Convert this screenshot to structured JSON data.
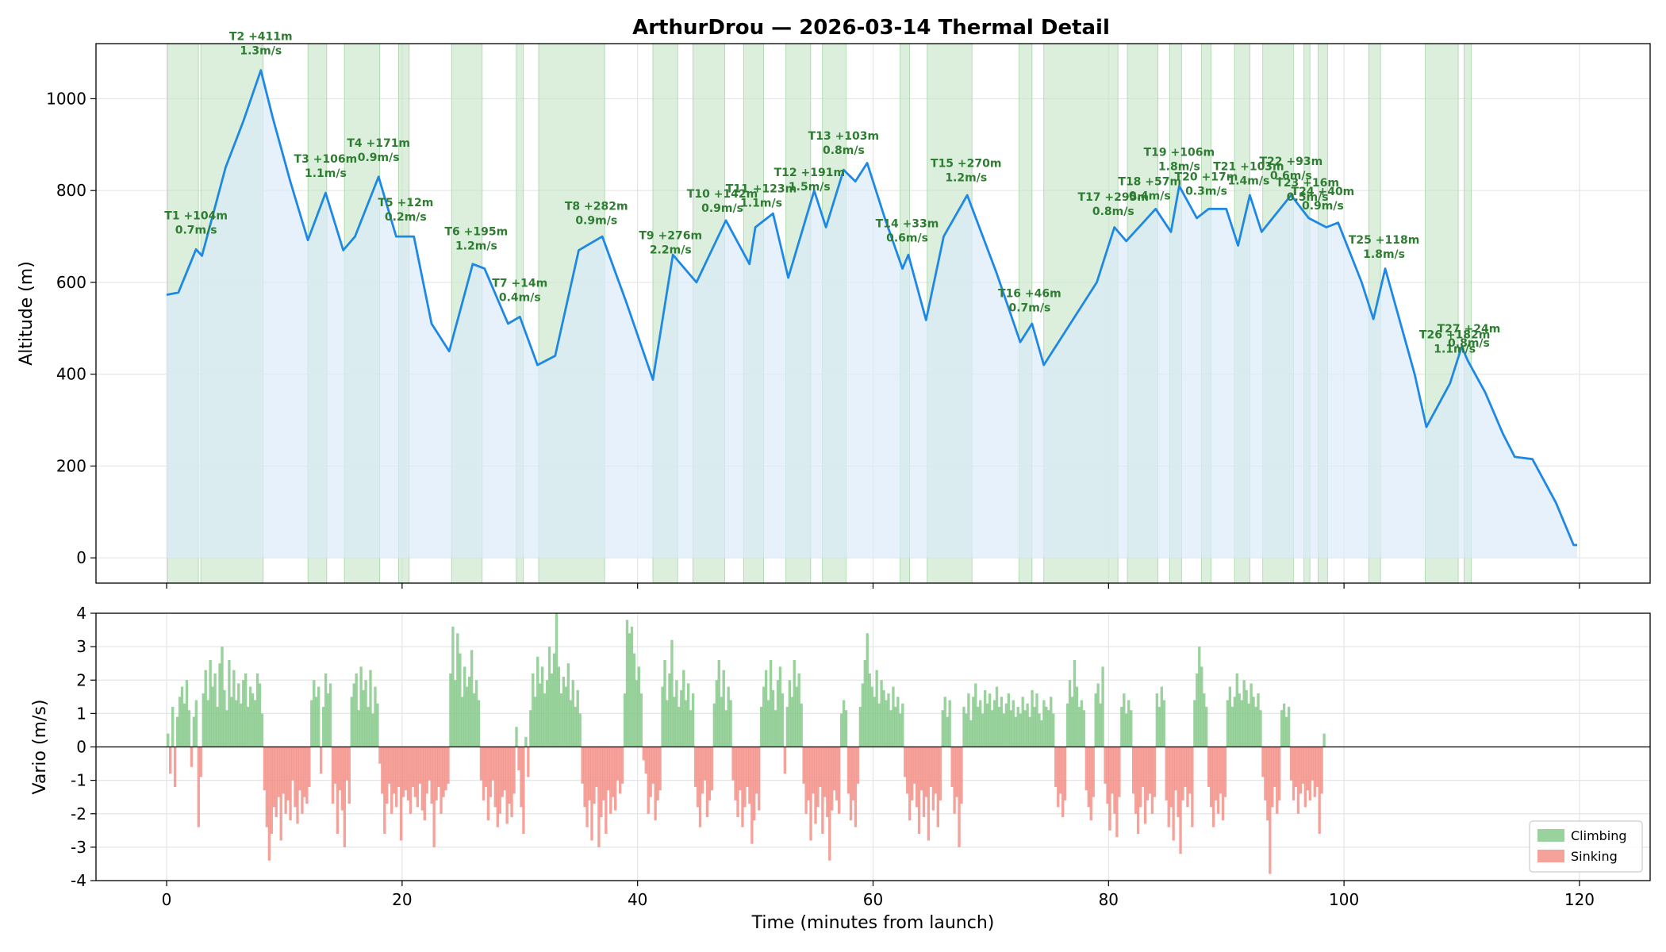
{
  "chart_data": {
    "type": "line",
    "title": "ArthurDrou — 2026-03-14 Thermal Detail",
    "xlabel": "Time (minutes from launch)",
    "xlim": [
      -6,
      126
    ],
    "x_ticks": [
      0,
      20,
      40,
      60,
      80,
      100,
      120
    ],
    "colors": {
      "altitude_line": "#1e88e5",
      "altitude_fill": "#dcebfa",
      "thermal_band": "#c8e6c9",
      "climb": "#81c784",
      "sink": "#f28b82",
      "label": "#2e7d32"
    },
    "altitude": {
      "ylabel": "Altitude (m)",
      "ylim": [
        -55,
        1120
      ],
      "y_ticks": [
        0,
        200,
        400,
        600,
        800,
        1000
      ],
      "series": [
        {
          "t": 0,
          "alt": 573
        },
        {
          "t": 1,
          "alt": 578
        },
        {
          "t": 2.5,
          "alt": 672
        },
        {
          "t": 3,
          "alt": 658
        },
        {
          "t": 5,
          "alt": 850
        },
        {
          "t": 6.5,
          "alt": 950
        },
        {
          "t": 8,
          "alt": 1062
        },
        {
          "t": 9,
          "alt": 960
        },
        {
          "t": 10.5,
          "alt": 820
        },
        {
          "t": 12,
          "alt": 692
        },
        {
          "t": 13.5,
          "alt": 795
        },
        {
          "t": 15,
          "alt": 670
        },
        {
          "t": 16,
          "alt": 700
        },
        {
          "t": 18,
          "alt": 830
        },
        {
          "t": 19.5,
          "alt": 700
        },
        {
          "t": 21,
          "alt": 700
        },
        {
          "t": 22.5,
          "alt": 510
        },
        {
          "t": 24,
          "alt": 450
        },
        {
          "t": 26,
          "alt": 640
        },
        {
          "t": 27,
          "alt": 630
        },
        {
          "t": 29,
          "alt": 510
        },
        {
          "t": 30,
          "alt": 525
        },
        {
          "t": 31.5,
          "alt": 420
        },
        {
          "t": 33,
          "alt": 440
        },
        {
          "t": 35,
          "alt": 670
        },
        {
          "t": 37,
          "alt": 700
        },
        {
          "t": 39,
          "alt": 560
        },
        {
          "t": 41.3,
          "alt": 388
        },
        {
          "t": 43,
          "alt": 660
        },
        {
          "t": 45,
          "alt": 600
        },
        {
          "t": 47.5,
          "alt": 735
        },
        {
          "t": 49.5,
          "alt": 640
        },
        {
          "t": 50,
          "alt": 720
        },
        {
          "t": 51.5,
          "alt": 750
        },
        {
          "t": 52.8,
          "alt": 610
        },
        {
          "t": 55,
          "alt": 800
        },
        {
          "t": 56,
          "alt": 720
        },
        {
          "t": 57.5,
          "alt": 845
        },
        {
          "t": 58.5,
          "alt": 820
        },
        {
          "t": 59.5,
          "alt": 860
        },
        {
          "t": 61,
          "alt": 740
        },
        {
          "t": 62.5,
          "alt": 630
        },
        {
          "t": 63,
          "alt": 660
        },
        {
          "t": 64.5,
          "alt": 518
        },
        {
          "t": 66,
          "alt": 700
        },
        {
          "t": 68,
          "alt": 790
        },
        {
          "t": 70.5,
          "alt": 620
        },
        {
          "t": 72.5,
          "alt": 470
        },
        {
          "t": 73.5,
          "alt": 510
        },
        {
          "t": 74.5,
          "alt": 420
        },
        {
          "t": 76,
          "alt": 480
        },
        {
          "t": 79,
          "alt": 600
        },
        {
          "t": 80.5,
          "alt": 720
        },
        {
          "t": 81.5,
          "alt": 690
        },
        {
          "t": 84,
          "alt": 760
        },
        {
          "t": 85.3,
          "alt": 710
        },
        {
          "t": 86,
          "alt": 810
        },
        {
          "t": 87.5,
          "alt": 740
        },
        {
          "t": 88.5,
          "alt": 760
        },
        {
          "t": 90,
          "alt": 760
        },
        {
          "t": 91,
          "alt": 680
        },
        {
          "t": 92,
          "alt": 790
        },
        {
          "t": 93,
          "alt": 710
        },
        {
          "t": 95.5,
          "alt": 790
        },
        {
          "t": 97,
          "alt": 740
        },
        {
          "t": 98.5,
          "alt": 720
        },
        {
          "t": 99.5,
          "alt": 730
        },
        {
          "t": 101.5,
          "alt": 600
        },
        {
          "t": 102.5,
          "alt": 520
        },
        {
          "t": 103.5,
          "alt": 630
        },
        {
          "t": 106,
          "alt": 400
        },
        {
          "t": 107,
          "alt": 285
        },
        {
          "t": 109,
          "alt": 380
        },
        {
          "t": 110,
          "alt": 460
        },
        {
          "t": 110.5,
          "alt": 430
        },
        {
          "t": 112,
          "alt": 360
        },
        {
          "t": 113.5,
          "alt": 270
        },
        {
          "t": 114.5,
          "alt": 220
        },
        {
          "t": 116,
          "alt": 215
        },
        {
          "t": 118,
          "alt": 120
        },
        {
          "t": 119.5,
          "alt": 28
        },
        {
          "t": 119.8,
          "alt": 28
        }
      ],
      "thermals": [
        {
          "id": "T1",
          "start": 0.1,
          "end": 2.7,
          "peak_t": 2.5,
          "label": "T1 +104m",
          "rate": "0.7m/s"
        },
        {
          "id": "T2",
          "start": 2.9,
          "end": 8.2,
          "peak_t": 8.0,
          "label": "T2 +411m",
          "rate": "1.3m/s"
        },
        {
          "id": "T3",
          "start": 12.0,
          "end": 13.6,
          "peak_t": 13.5,
          "label": "T3 +106m",
          "rate": "1.1m/s"
        },
        {
          "id": "T4",
          "start": 15.1,
          "end": 18.1,
          "peak_t": 18.0,
          "label": "T4 +171m",
          "rate": "0.9m/s"
        },
        {
          "id": "T5",
          "start": 19.7,
          "end": 20.6,
          "peak_t": 20.3,
          "label": "T5 +12m",
          "rate": "0.2m/s"
        },
        {
          "id": "T6",
          "start": 24.2,
          "end": 26.8,
          "peak_t": 26.3,
          "label": "T6 +195m",
          "rate": "1.2m/s"
        },
        {
          "id": "T7",
          "start": 29.7,
          "end": 30.3,
          "peak_t": 30.0,
          "label": "T7 +14m",
          "rate": "0.4m/s"
        },
        {
          "id": "T8",
          "start": 31.6,
          "end": 37.2,
          "peak_t": 36.5,
          "label": "T8 +282m",
          "rate": "0.9m/s"
        },
        {
          "id": "T9",
          "start": 41.3,
          "end": 43.4,
          "peak_t": 42.8,
          "label": "T9 +276m",
          "rate": "2.2m/s"
        },
        {
          "id": "T10",
          "start": 44.7,
          "end": 47.4,
          "peak_t": 47.2,
          "label": "T10 +142m",
          "rate": "0.9m/s"
        },
        {
          "id": "T11",
          "start": 49.0,
          "end": 50.7,
          "peak_t": 50.5,
          "label": "T11 +123m",
          "rate": "1.1m/s"
        },
        {
          "id": "T12",
          "start": 52.6,
          "end": 54.7,
          "peak_t": 54.6,
          "label": "T12 +191m",
          "rate": "1.5m/s"
        },
        {
          "id": "T13",
          "start": 55.7,
          "end": 57.7,
          "peak_t": 57.5,
          "label": "T13 +103m",
          "rate": "0.8m/s"
        },
        {
          "id": "T14",
          "start": 62.3,
          "end": 63.1,
          "peak_t": 62.9,
          "label": "T14 +33m",
          "rate": "0.6m/s"
        },
        {
          "id": "T15",
          "start": 64.6,
          "end": 68.4,
          "peak_t": 67.9,
          "label": "T15 +270m",
          "rate": "1.2m/s"
        },
        {
          "id": "T16",
          "start": 72.4,
          "end": 73.5,
          "peak_t": 73.3,
          "label": "T16 +46m",
          "rate": "0.7m/s"
        },
        {
          "id": "T17",
          "start": 74.5,
          "end": 80.8,
          "peak_t": 80.4,
          "label": "T17 +295m",
          "rate": "0.8m/s"
        },
        {
          "id": "T18",
          "start": 81.6,
          "end": 84.2,
          "peak_t": 83.5,
          "label": "T18 +57m",
          "rate": "0.4m/s"
        },
        {
          "id": "T19",
          "start": 85.2,
          "end": 86.2,
          "peak_t": 86.0,
          "label": "T19 +106m",
          "rate": "1.8m/s"
        },
        {
          "id": "T20",
          "start": 87.9,
          "end": 88.7,
          "peak_t": 88.3,
          "label": "T20 +17m",
          "rate": "0.3m/s"
        },
        {
          "id": "T21",
          "start": 90.7,
          "end": 92.0,
          "peak_t": 91.9,
          "label": "T21 +103m",
          "rate": "1.4m/s"
        },
        {
          "id": "T22",
          "start": 93.1,
          "end": 95.7,
          "peak_t": 95.5,
          "label": "T22 +93m",
          "rate": "0.6m/s"
        },
        {
          "id": "T23",
          "start": 96.6,
          "end": 97.1,
          "peak_t": 96.9,
          "label": "T23 +16m",
          "rate": "0.5m/s"
        },
        {
          "id": "T24",
          "start": 97.8,
          "end": 98.6,
          "peak_t": 98.2,
          "label": "T24 +40m",
          "rate": "0.9m/s"
        },
        {
          "id": "T25",
          "start": 102.1,
          "end": 103.1,
          "peak_t": 103.4,
          "label": "T25 +118m",
          "rate": "1.8m/s"
        },
        {
          "id": "T26",
          "start": 106.9,
          "end": 109.7,
          "peak_t": 109.4,
          "label": "T26 +182m",
          "rate": "1.1m/s"
        },
        {
          "id": "T27",
          "start": 110.2,
          "end": 110.8,
          "peak_t": 110.6,
          "label": "T27 +24m",
          "rate": "0.8m/s"
        }
      ]
    },
    "vario": {
      "ylabel": "Vario (m/s)",
      "ylim": [
        -4,
        4
      ],
      "y_ticks": [
        -4,
        -3,
        -2,
        -1,
        0,
        1,
        2,
        3,
        4
      ],
      "t_start": 0,
      "t_step": 0.2,
      "values": [
        0.4,
        -0.8,
        1.2,
        -1.2,
        0.9,
        1.5,
        1.8,
        1.3,
        2.0,
        1.1,
        -0.6,
        0.9,
        1.4,
        -2.4,
        -0.9,
        1.6,
        2.3,
        1.4,
        2.6,
        1.8,
        2.2,
        1.2,
        2.5,
        3.0,
        1.7,
        1.1,
        2.6,
        1.5,
        2.3,
        1.4,
        1.9,
        1.3,
        2.0,
        2.2,
        1.2,
        1.8,
        1.6,
        1.4,
        2.2,
        1.9,
        1.0,
        -1.3,
        -2.4,
        -3.4,
        -2.6,
        -1.8,
        -2.1,
        -1.5,
        -2.8,
        -1.4,
        -2.0,
        -1.6,
        -2.2,
        -1.0,
        -1.8,
        -2.3,
        -1.3,
        -2.0,
        -1.5,
        -1.7,
        -1.2,
        1.4,
        2.0,
        1.5,
        1.8,
        -0.8,
        1.2,
        2.2,
        1.6,
        1.9,
        -1.7,
        -1.1,
        -2.6,
        -1.3,
        -1.9,
        -3.0,
        -1.0,
        -1.7,
        1.5,
        1.9,
        2.2,
        1.1,
        2.4,
        1.7,
        2.0,
        1.2,
        2.3,
        1.0,
        1.8,
        1.3,
        -0.5,
        -1.4,
        -2.6,
        -1.7,
        -1.1,
        -2.0,
        -1.4,
        -1.8,
        -1.2,
        -2.8,
        -1.5,
        -1.3,
        -1.6,
        -2.0,
        -1.2,
        -1.5,
        -1.8,
        -1.1,
        -1.9,
        -2.2,
        -1.4,
        -1.0,
        -1.7,
        -3.0,
        -1.6,
        -1.2,
        -2.0,
        -1.5,
        -1.3,
        -1.1,
        2.2,
        3.6,
        2.0,
        3.4,
        2.8,
        1.5,
        2.4,
        1.8,
        2.1,
        2.9,
        1.6,
        2.0,
        1.4,
        -1.0,
        -1.6,
        -1.2,
        -2.2,
        -1.5,
        -1.0,
        -1.8,
        -2.4,
        -2.0,
        -1.5,
        -1.3,
        -2.3,
        -1.7,
        -2.1,
        -1.4,
        0.6,
        -0.7,
        -1.8,
        -2.6,
        0.3,
        -0.9,
        1.1,
        2.2,
        1.5,
        2.7,
        1.9,
        2.4,
        1.6,
        2.0,
        3.0,
        2.2,
        2.8,
        4.0,
        2.4,
        1.6,
        2.1,
        1.8,
        2.5,
        1.4,
        2.0,
        1.2,
        1.7,
        1.0,
        -1.1,
        -1.8,
        -2.4,
        -1.6,
        -2.8,
        -1.7,
        -1.2,
        -3.0,
        -2.1,
        -1.6,
        -2.6,
        -1.3,
        -2.0,
        -1.5,
        -1.9,
        -1.0,
        -1.4,
        -1.1,
        1.6,
        3.8,
        3.4,
        3.6,
        2.8,
        2.0,
        2.4,
        1.6,
        -0.4,
        -0.8,
        -2.0,
        -1.5,
        -1.1,
        -2.2,
        -1.6,
        -1.3,
        1.8,
        2.6,
        1.4,
        2.2,
        3.2,
        1.5,
        2.0,
        1.2,
        1.7,
        2.3,
        1.4,
        1.9,
        1.1,
        1.6,
        -1.2,
        -1.8,
        -2.4,
        -1.4,
        -1.0,
        -2.1,
        -1.6,
        -1.3,
        1.3,
        2.0,
        2.6,
        1.5,
        2.3,
        1.1,
        1.8,
        1.4,
        -1.0,
        -1.6,
        -2.1,
        -1.3,
        -2.4,
        -1.8,
        -1.2,
        -1.7,
        -2.9,
        -2.2,
        -1.4,
        -1.9,
        1.2,
        1.8,
        2.3,
        1.4,
        2.6,
        1.7,
        1.1,
        2.0,
        2.4,
        1.6,
        -0.8,
        1.2,
        2.0,
        1.5,
        2.6,
        1.8,
        2.2,
        1.3,
        -1.1,
        -2.0,
        -1.6,
        -2.8,
        -1.4,
        -2.3,
        -1.8,
        -1.2,
        -2.6,
        -1.5,
        -2.1,
        -3.4,
        -1.9,
        -1.3,
        -1.6,
        -2.0,
        1.0,
        1.4,
        1.1,
        -1.4,
        -2.2,
        -1.6,
        -2.4,
        -1.1,
        1.2,
        1.9,
        2.6,
        3.4,
        2.2,
        1.8,
        1.5,
        2.3,
        1.3,
        2.0,
        1.7,
        1.4,
        1.6,
        1.1,
        1.8,
        1.2,
        1.5,
        1.0,
        1.3,
        -0.9,
        -1.4,
        -2.2,
        -1.6,
        -1.1,
        -1.8,
        -2.6,
        -1.3,
        -2.1,
        -1.5,
        -2.8,
        -1.2,
        -1.9,
        -1.4,
        -2.4,
        -1.6,
        1.1,
        1.5,
        0.9,
        1.4,
        -1.2,
        -2.0,
        -1.5,
        -3.0,
        -1.7,
        1.2,
        1.0,
        1.6,
        0.8,
        1.5,
        1.9,
        1.2,
        1.4,
        1.0,
        1.7,
        1.3,
        1.6,
        1.1,
        1.4,
        1.8,
        1.2,
        1.5,
        1.0,
        1.3,
        1.6,
        1.1,
        1.4,
        0.9,
        1.2,
        1.0,
        1.5,
        1.1,
        1.3,
        0.9,
        1.7,
        1.2,
        1.6,
        1.0,
        0.8,
        1.4,
        1.2,
        1.1,
        1.5,
        1.0,
        -1.2,
        -1.8,
        -1.4,
        -2.1,
        -1.6,
        1.3,
        2.0,
        1.5,
        2.6,
        1.8,
        1.2,
        1.4,
        1.1,
        -1.3,
        -1.8,
        -2.2,
        -1.5,
        1.6,
        1.9,
        1.3,
        2.4,
        -1.1,
        -1.7,
        -2.5,
        -1.4,
        -2.0,
        -2.7,
        -1.5,
        1.2,
        1.6,
        1.0,
        1.4,
        1.1,
        -1.4,
        -2.0,
        -2.6,
        -1.8,
        -1.2,
        -2.3,
        -1.6,
        -1.4,
        -2.0,
        -1.5,
        1.6,
        1.2,
        1.8,
        1.4,
        -1.6,
        -2.4,
        -1.8,
        -2.8,
        -1.3,
        -2.1,
        -3.2,
        -1.6,
        -1.2,
        -1.8,
        -1.4,
        -2.4,
        1.4,
        2.2,
        3.0,
        2.4,
        1.6,
        1.2,
        -1.2,
        -1.8,
        -2.4,
        -1.6,
        -2.0,
        -1.4,
        -2.2,
        -1.5,
        1.4,
        1.8,
        1.2,
        1.5,
        2.2,
        1.6,
        1.4,
        2.0,
        1.7,
        1.3,
        1.9,
        1.5,
        1.2,
        1.6,
        1.1,
        -0.9,
        -1.6,
        -2.2,
        -3.8,
        -1.8,
        -1.2,
        -2.0,
        -1.6,
        1.1,
        1.3,
        0.9,
        1.2,
        -1.0,
        -1.6,
        -1.2,
        -2.0,
        -1.4,
        -1.1,
        -1.8,
        -1.3,
        -1.6,
        -1.0,
        -1.5,
        -1.2,
        -2.6,
        -1.4,
        0.4
      ],
      "legend": [
        {
          "label": "Climbing",
          "color": "#81c784"
        },
        {
          "label": "Sinking",
          "color": "#f28b82"
        }
      ],
      "legend_position": "lower-right"
    }
  }
}
